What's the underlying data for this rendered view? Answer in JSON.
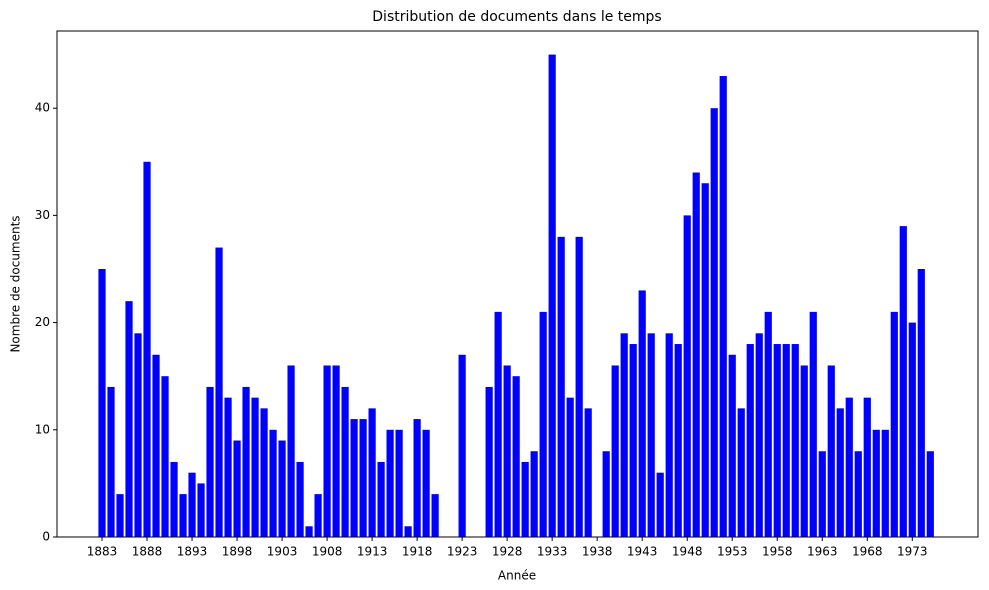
{
  "chart_data": {
    "type": "bar",
    "title": "Distribution de documents dans le temps",
    "xlabel": "Année",
    "ylabel": "Nombre de documents",
    "color": "#0000ff",
    "x": [
      1883,
      1884,
      1885,
      1886,
      1887,
      1888,
      1889,
      1890,
      1891,
      1892,
      1893,
      1894,
      1895,
      1896,
      1897,
      1898,
      1899,
      1900,
      1901,
      1902,
      1903,
      1904,
      1905,
      1906,
      1907,
      1908,
      1909,
      1910,
      1911,
      1912,
      1913,
      1914,
      1915,
      1916,
      1917,
      1918,
      1919,
      1920,
      1923,
      1926,
      1927,
      1928,
      1929,
      1930,
      1931,
      1932,
      1933,
      1934,
      1935,
      1936,
      1937,
      1939,
      1940,
      1941,
      1942,
      1943,
      1944,
      1945,
      1946,
      1947,
      1948,
      1949,
      1950,
      1951,
      1952,
      1953,
      1954,
      1955,
      1956,
      1957,
      1958,
      1959,
      1960,
      1961,
      1962,
      1963,
      1964,
      1965,
      1966,
      1967,
      1968,
      1969,
      1970,
      1971,
      1972,
      1973,
      1974,
      1975
    ],
    "values": [
      25,
      14,
      4,
      22,
      19,
      35,
      17,
      15,
      7,
      4,
      6,
      5,
      14,
      27,
      13,
      9,
      14,
      13,
      12,
      10,
      9,
      16,
      7,
      1,
      4,
      16,
      16,
      14,
      11,
      11,
      12,
      7,
      10,
      10,
      1,
      11,
      10,
      4,
      17,
      14,
      21,
      16,
      15,
      7,
      8,
      21,
      45,
      28,
      13,
      28,
      12,
      8,
      16,
      19,
      18,
      23,
      19,
      6,
      19,
      18,
      30,
      34,
      33,
      40,
      43,
      17,
      12,
      18,
      19,
      21,
      18,
      18,
      18,
      16,
      21,
      8,
      16,
      12,
      13,
      8,
      13,
      10,
      10,
      21,
      29,
      20,
      25,
      8
    ],
    "xlim": [
      1878,
      1980.3
    ],
    "xticks": [
      1883,
      1888,
      1893,
      1898,
      1903,
      1908,
      1913,
      1918,
      1923,
      1928,
      1933,
      1938,
      1943,
      1948,
      1953,
      1958,
      1963,
      1968,
      1973
    ],
    "ylim": [
      0,
      47.2
    ],
    "yticks": [
      0,
      10,
      20,
      30,
      40
    ]
  }
}
